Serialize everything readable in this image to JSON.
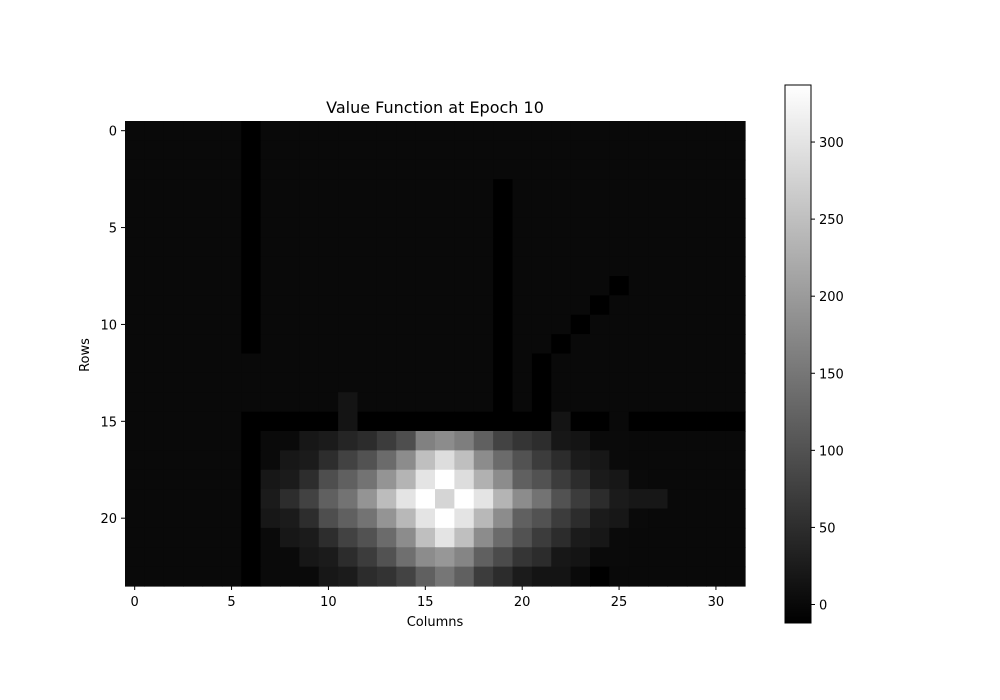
{
  "chart_data": {
    "type": "heatmap",
    "title": "Value Function at Epoch 10",
    "xlabel": "Columns",
    "ylabel": "Rows",
    "colormap": "gray",
    "vmin": -12,
    "vmax": 337,
    "n_rows": 24,
    "n_cols": 32,
    "x_ticks": [
      0,
      5,
      10,
      15,
      20,
      25,
      30
    ],
    "x_tick_labels": [
      "0",
      "5",
      "10",
      "15",
      "20",
      "25",
      "30"
    ],
    "y_ticks": [
      0,
      5,
      10,
      15,
      20
    ],
    "y_tick_labels": [
      "0",
      "5",
      "10",
      "15",
      "20"
    ],
    "colorbar_ticks": [
      0,
      50,
      100,
      150,
      200,
      250,
      300
    ],
    "colorbar_tick_labels": [
      "0",
      "50",
      "100",
      "150",
      "200",
      "250",
      "300"
    ],
    "values": [
      [
        0,
        0,
        0,
        0,
        0,
        0,
        -12,
        0,
        0,
        0,
        0,
        0,
        0,
        0,
        0,
        0,
        0,
        0,
        0,
        0,
        0,
        0,
        0,
        0,
        0,
        0,
        0,
        0,
        0,
        0,
        0,
        0
      ],
      [
        0,
        0,
        0,
        0,
        0,
        0,
        -12,
        0,
        0,
        0,
        0,
        0,
        0,
        0,
        0,
        0,
        0,
        0,
        0,
        0,
        0,
        0,
        0,
        0,
        0,
        0,
        0,
        0,
        0,
        0,
        0,
        0
      ],
      [
        0,
        0,
        0,
        0,
        0,
        0,
        -12,
        0,
        0,
        0,
        0,
        0,
        0,
        0,
        0,
        0,
        0,
        0,
        0,
        0,
        0,
        0,
        0,
        0,
        0,
        0,
        0,
        0,
        0,
        0,
        0,
        0
      ],
      [
        0,
        0,
        0,
        0,
        0,
        0,
        -12,
        0,
        0,
        0,
        0,
        0,
        0,
        0,
        0,
        0,
        0,
        0,
        0,
        -12,
        0,
        0,
        0,
        0,
        0,
        0,
        0,
        0,
        0,
        0,
        0,
        0
      ],
      [
        0,
        0,
        0,
        0,
        0,
        0,
        -12,
        0,
        0,
        0,
        0,
        0,
        0,
        0,
        0,
        0,
        0,
        0,
        0,
        -12,
        0,
        0,
        0,
        0,
        0,
        0,
        0,
        0,
        0,
        0,
        0,
        0
      ],
      [
        0,
        0,
        0,
        0,
        0,
        0,
        -12,
        0,
        0,
        0,
        0,
        0,
        0,
        0,
        0,
        0,
        0,
        0,
        0,
        -12,
        0,
        0,
        0,
        0,
        0,
        0,
        0,
        0,
        0,
        0,
        0,
        0
      ],
      [
        0,
        0,
        0,
        0,
        0,
        0,
        -12,
        0,
        0,
        0,
        0,
        0,
        0,
        0,
        0,
        0,
        0,
        0,
        0,
        -12,
        0,
        0,
        0,
        0,
        0,
        0,
        0,
        0,
        0,
        0,
        0,
        0
      ],
      [
        0,
        0,
        0,
        0,
        0,
        0,
        -12,
        0,
        0,
        0,
        0,
        0,
        0,
        0,
        0,
        0,
        0,
        0,
        0,
        -12,
        0,
        0,
        0,
        0,
        0,
        0,
        0,
        0,
        0,
        0,
        0,
        0
      ],
      [
        0,
        0,
        0,
        0,
        0,
        0,
        -12,
        0,
        0,
        0,
        0,
        0,
        0,
        0,
        0,
        0,
        0,
        0,
        0,
        -12,
        0,
        0,
        0,
        0,
        0,
        -12,
        0,
        0,
        0,
        0,
        0,
        0
      ],
      [
        0,
        0,
        0,
        0,
        0,
        0,
        -12,
        0,
        0,
        0,
        0,
        0,
        0,
        0,
        0,
        0,
        0,
        0,
        0,
        -12,
        0,
        0,
        0,
        0,
        -12,
        0,
        0,
        0,
        0,
        0,
        0,
        0
      ],
      [
        0,
        0,
        0,
        0,
        0,
        0,
        -12,
        0,
        0,
        0,
        0,
        0,
        0,
        0,
        0,
        0,
        0,
        0,
        0,
        -12,
        0,
        0,
        0,
        -12,
        0,
        0,
        0,
        0,
        0,
        0,
        0,
        0
      ],
      [
        0,
        0,
        0,
        0,
        0,
        0,
        -12,
        0,
        0,
        0,
        0,
        0,
        0,
        0,
        0,
        0,
        0,
        0,
        0,
        -12,
        0,
        0,
        -12,
        0,
        0,
        0,
        0,
        0,
        0,
        0,
        0,
        0
      ],
      [
        0,
        0,
        0,
        0,
        0,
        0,
        0,
        0,
        0,
        0,
        0,
        0,
        0,
        0,
        0,
        0,
        0,
        0,
        0,
        -12,
        0,
        -12,
        0,
        0,
        0,
        0,
        0,
        0,
        0,
        0,
        0,
        0
      ],
      [
        0,
        0,
        0,
        0,
        0,
        0,
        0,
        0,
        0,
        0,
        0,
        0,
        0,
        0,
        0,
        0,
        0,
        0,
        0,
        -12,
        0,
        -12,
        0,
        0,
        0,
        0,
        0,
        0,
        0,
        0,
        0,
        0
      ],
      [
        0,
        0,
        0,
        0,
        0,
        0,
        0,
        0,
        0,
        0,
        0,
        15,
        0,
        0,
        0,
        0,
        0,
        0,
        0,
        -12,
        0,
        -12,
        0,
        0,
        0,
        0,
        0,
        0,
        0,
        0,
        0,
        0
      ],
      [
        0,
        0,
        0,
        0,
        0,
        0,
        -12,
        -12,
        -12,
        -12,
        -12,
        15,
        -12,
        -12,
        -12,
        -12,
        -12,
        -12,
        -12,
        -12,
        -12,
        -12,
        15,
        -12,
        -12,
        0,
        -12,
        -12,
        -12,
        -12,
        -12,
        -12
      ],
      [
        0,
        0,
        0,
        0,
        0,
        0,
        -12,
        2,
        2,
        20,
        25,
        38,
        48,
        70,
        95,
        165,
        180,
        160,
        120,
        80,
        60,
        50,
        20,
        15,
        2,
        2,
        0,
        0,
        0,
        0,
        0,
        0
      ],
      [
        0,
        0,
        0,
        0,
        0,
        0,
        -12,
        2,
        20,
        25,
        50,
        78,
        100,
        135,
        180,
        250,
        290,
        250,
        180,
        135,
        100,
        70,
        48,
        25,
        20,
        2,
        0,
        0,
        0,
        0,
        0,
        0
      ],
      [
        0,
        0,
        0,
        0,
        0,
        0,
        -12,
        20,
        25,
        50,
        95,
        120,
        145,
        190,
        235,
        300,
        337,
        290,
        230,
        180,
        120,
        100,
        70,
        48,
        25,
        20,
        2,
        0,
        0,
        0,
        0,
        0
      ],
      [
        0,
        0,
        0,
        0,
        0,
        0,
        -12,
        25,
        50,
        78,
        120,
        145,
        190,
        245,
        300,
        337,
        280,
        337,
        300,
        235,
        180,
        145,
        100,
        70,
        48,
        25,
        20,
        20,
        0,
        0,
        0,
        0
      ],
      [
        0,
        0,
        0,
        0,
        0,
        0,
        -12,
        20,
        25,
        50,
        95,
        120,
        145,
        190,
        240,
        300,
        337,
        300,
        240,
        180,
        120,
        100,
        70,
        48,
        25,
        20,
        2,
        0,
        0,
        0,
        0,
        0
      ],
      [
        0,
        0,
        0,
        0,
        0,
        0,
        -12,
        2,
        20,
        25,
        50,
        78,
        100,
        135,
        180,
        250,
        300,
        250,
        180,
        135,
        100,
        70,
        48,
        25,
        20,
        2,
        0,
        0,
        0,
        0,
        0,
        0
      ],
      [
        0,
        0,
        0,
        0,
        0,
        0,
        -12,
        2,
        2,
        20,
        25,
        48,
        70,
        100,
        140,
        180,
        195,
        170,
        120,
        90,
        60,
        48,
        20,
        15,
        2,
        2,
        0,
        0,
        0,
        0,
        0,
        0
      ],
      [
        0,
        0,
        0,
        0,
        0,
        0,
        -12,
        2,
        2,
        2,
        20,
        25,
        48,
        58,
        80,
        120,
        150,
        120,
        70,
        48,
        25,
        15,
        15,
        2,
        -12,
        0,
        0,
        0,
        0,
        0,
        0,
        0
      ]
    ]
  }
}
